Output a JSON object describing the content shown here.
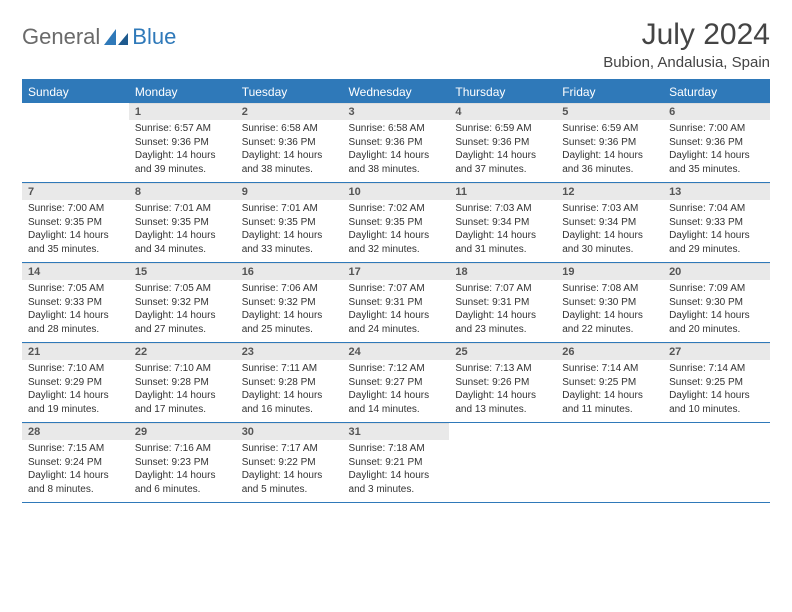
{
  "brand": {
    "part1": "General",
    "part2": "Blue"
  },
  "title": "July 2024",
  "location": "Bubion, Andalusia, Spain",
  "colors": {
    "accent": "#2f79b9",
    "header_text": "#ffffff",
    "daynum_bg": "#e9e9e9",
    "text": "#333333",
    "title": "#444444"
  },
  "weekdays": [
    "Sunday",
    "Monday",
    "Tuesday",
    "Wednesday",
    "Thursday",
    "Friday",
    "Saturday"
  ],
  "start_offset": 1,
  "days": [
    {
      "n": 1,
      "sr": "6:57 AM",
      "ss": "9:36 PM",
      "dl": "14 hours and 39 minutes."
    },
    {
      "n": 2,
      "sr": "6:58 AM",
      "ss": "9:36 PM",
      "dl": "14 hours and 38 minutes."
    },
    {
      "n": 3,
      "sr": "6:58 AM",
      "ss": "9:36 PM",
      "dl": "14 hours and 38 minutes."
    },
    {
      "n": 4,
      "sr": "6:59 AM",
      "ss": "9:36 PM",
      "dl": "14 hours and 37 minutes."
    },
    {
      "n": 5,
      "sr": "6:59 AM",
      "ss": "9:36 PM",
      "dl": "14 hours and 36 minutes."
    },
    {
      "n": 6,
      "sr": "7:00 AM",
      "ss": "9:36 PM",
      "dl": "14 hours and 35 minutes."
    },
    {
      "n": 7,
      "sr": "7:00 AM",
      "ss": "9:35 PM",
      "dl": "14 hours and 35 minutes."
    },
    {
      "n": 8,
      "sr": "7:01 AM",
      "ss": "9:35 PM",
      "dl": "14 hours and 34 minutes."
    },
    {
      "n": 9,
      "sr": "7:01 AM",
      "ss": "9:35 PM",
      "dl": "14 hours and 33 minutes."
    },
    {
      "n": 10,
      "sr": "7:02 AM",
      "ss": "9:35 PM",
      "dl": "14 hours and 32 minutes."
    },
    {
      "n": 11,
      "sr": "7:03 AM",
      "ss": "9:34 PM",
      "dl": "14 hours and 31 minutes."
    },
    {
      "n": 12,
      "sr": "7:03 AM",
      "ss": "9:34 PM",
      "dl": "14 hours and 30 minutes."
    },
    {
      "n": 13,
      "sr": "7:04 AM",
      "ss": "9:33 PM",
      "dl": "14 hours and 29 minutes."
    },
    {
      "n": 14,
      "sr": "7:05 AM",
      "ss": "9:33 PM",
      "dl": "14 hours and 28 minutes."
    },
    {
      "n": 15,
      "sr": "7:05 AM",
      "ss": "9:32 PM",
      "dl": "14 hours and 27 minutes."
    },
    {
      "n": 16,
      "sr": "7:06 AM",
      "ss": "9:32 PM",
      "dl": "14 hours and 25 minutes."
    },
    {
      "n": 17,
      "sr": "7:07 AM",
      "ss": "9:31 PM",
      "dl": "14 hours and 24 minutes."
    },
    {
      "n": 18,
      "sr": "7:07 AM",
      "ss": "9:31 PM",
      "dl": "14 hours and 23 minutes."
    },
    {
      "n": 19,
      "sr": "7:08 AM",
      "ss": "9:30 PM",
      "dl": "14 hours and 22 minutes."
    },
    {
      "n": 20,
      "sr": "7:09 AM",
      "ss": "9:30 PM",
      "dl": "14 hours and 20 minutes."
    },
    {
      "n": 21,
      "sr": "7:10 AM",
      "ss": "9:29 PM",
      "dl": "14 hours and 19 minutes."
    },
    {
      "n": 22,
      "sr": "7:10 AM",
      "ss": "9:28 PM",
      "dl": "14 hours and 17 minutes."
    },
    {
      "n": 23,
      "sr": "7:11 AM",
      "ss": "9:28 PM",
      "dl": "14 hours and 16 minutes."
    },
    {
      "n": 24,
      "sr": "7:12 AM",
      "ss": "9:27 PM",
      "dl": "14 hours and 14 minutes."
    },
    {
      "n": 25,
      "sr": "7:13 AM",
      "ss": "9:26 PM",
      "dl": "14 hours and 13 minutes."
    },
    {
      "n": 26,
      "sr": "7:14 AM",
      "ss": "9:25 PM",
      "dl": "14 hours and 11 minutes."
    },
    {
      "n": 27,
      "sr": "7:14 AM",
      "ss": "9:25 PM",
      "dl": "14 hours and 10 minutes."
    },
    {
      "n": 28,
      "sr": "7:15 AM",
      "ss": "9:24 PM",
      "dl": "14 hours and 8 minutes."
    },
    {
      "n": 29,
      "sr": "7:16 AM",
      "ss": "9:23 PM",
      "dl": "14 hours and 6 minutes."
    },
    {
      "n": 30,
      "sr": "7:17 AM",
      "ss": "9:22 PM",
      "dl": "14 hours and 5 minutes."
    },
    {
      "n": 31,
      "sr": "7:18 AM",
      "ss": "9:21 PM",
      "dl": "14 hours and 3 minutes."
    }
  ],
  "labels": {
    "sunrise": "Sunrise:",
    "sunset": "Sunset:",
    "daylight": "Daylight:"
  }
}
